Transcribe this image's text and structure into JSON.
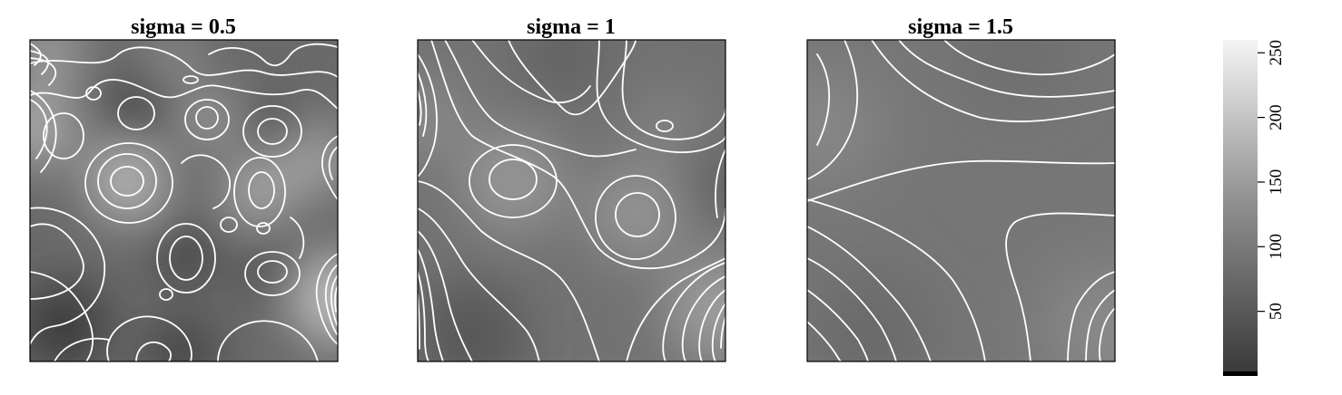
{
  "chart_data": [
    {
      "type": "heatmap",
      "title": "sigma = 0.5",
      "xlabel": "",
      "ylabel": "",
      "axes_visible": false,
      "colormap": "grayscale"
    },
    {
      "type": "heatmap",
      "title": "sigma = 1",
      "xlabel": "",
      "ylabel": "",
      "axes_visible": false,
      "colormap": "grayscale"
    },
    {
      "type": "heatmap",
      "title": "sigma = 1.5",
      "xlabel": "",
      "ylabel": "",
      "axes_visible": false,
      "colormap": "grayscale"
    }
  ],
  "colorbar": {
    "range": [
      0,
      260
    ],
    "ticks": [
      "50",
      "100",
      "150",
      "200",
      "250"
    ],
    "tick_values": [
      50,
      100,
      150,
      200,
      250
    ],
    "low_color": "#000000",
    "high_color": "#ffffff",
    "orientation": "vertical",
    "placement": "right"
  }
}
